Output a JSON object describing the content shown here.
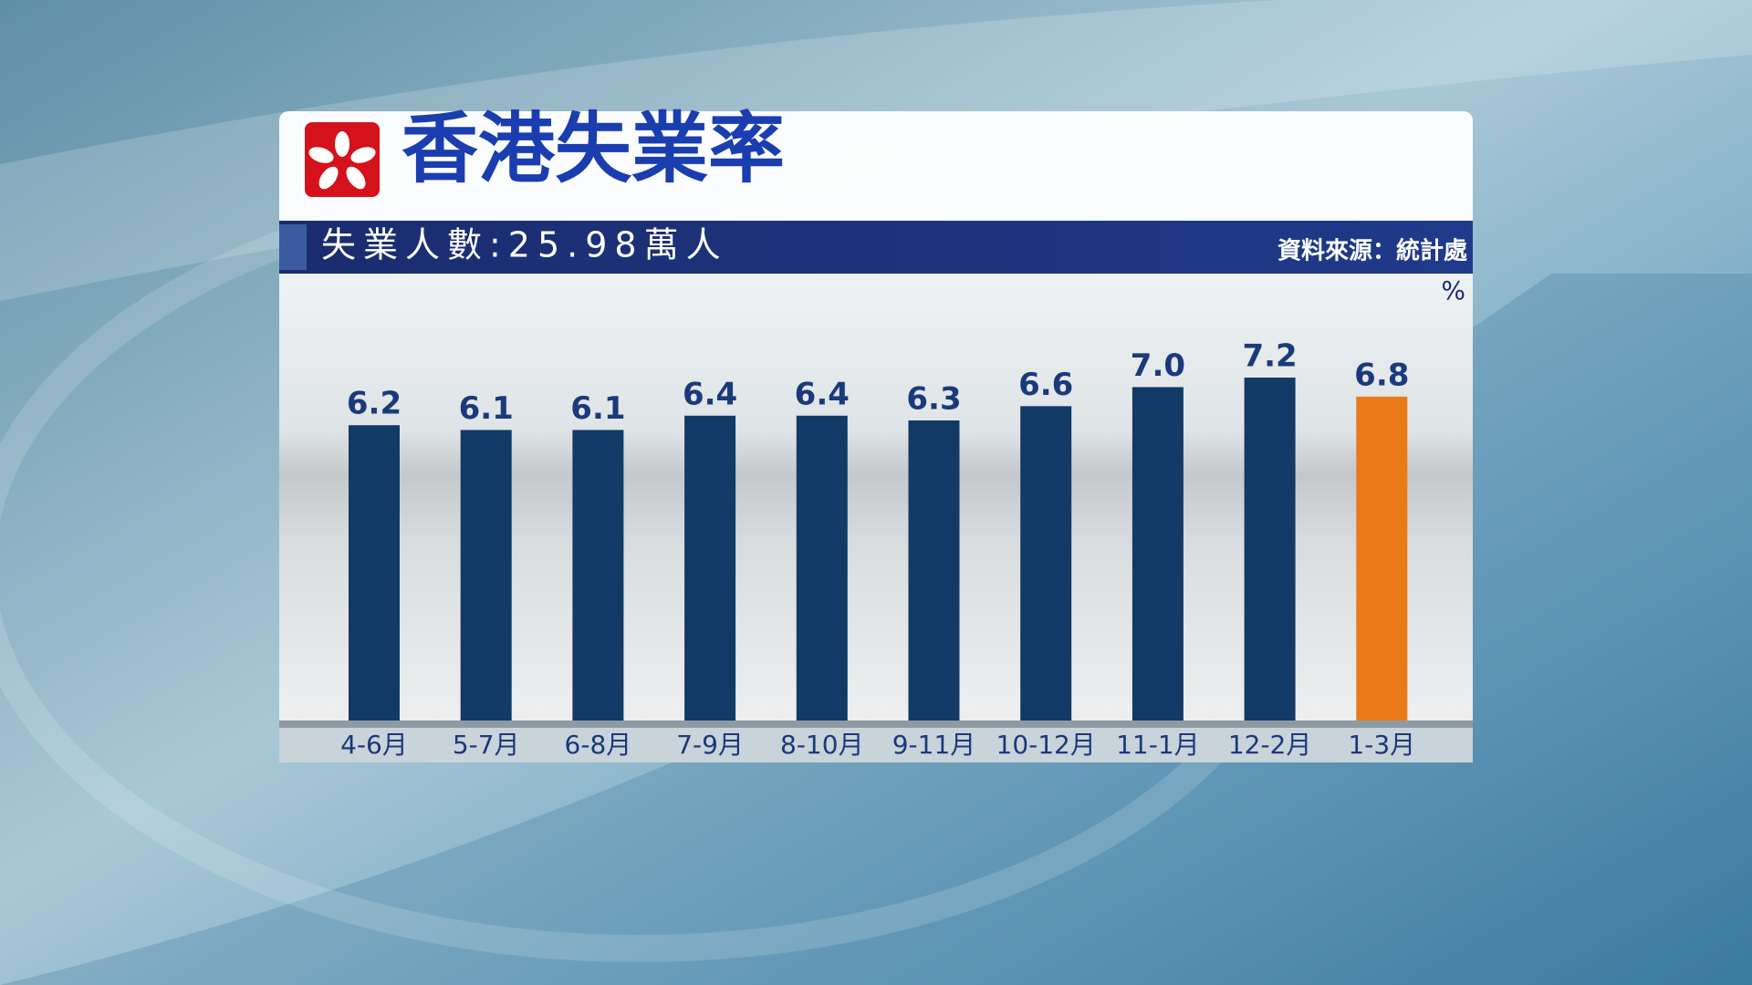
{
  "chart_data": {
    "type": "bar",
    "title": "香港失業率",
    "subtitle": "失業人數:25.98萬人",
    "source": "資料來源：統計處",
    "unit": "%",
    "categories": [
      "4-6月",
      "5-7月",
      "6-8月",
      "7-9月",
      "8-10月",
      "9-11月",
      "10-12月",
      "11-1月",
      "12-2月",
      "1-3月"
    ],
    "values": [
      6.2,
      6.1,
      6.1,
      6.4,
      6.4,
      6.3,
      6.6,
      7.0,
      7.2,
      6.8
    ],
    "value_labels": [
      "6.2",
      "6.1",
      "6.1",
      "6.4",
      "6.4",
      "6.3",
      "6.6",
      "7.0",
      "7.2",
      "6.8"
    ],
    "colors": [
      "#123a66",
      "#123a66",
      "#123a66",
      "#123a66",
      "#123a66",
      "#123a66",
      "#123a66",
      "#123a66",
      "#123a66",
      "#ea7a18"
    ]
  }
}
